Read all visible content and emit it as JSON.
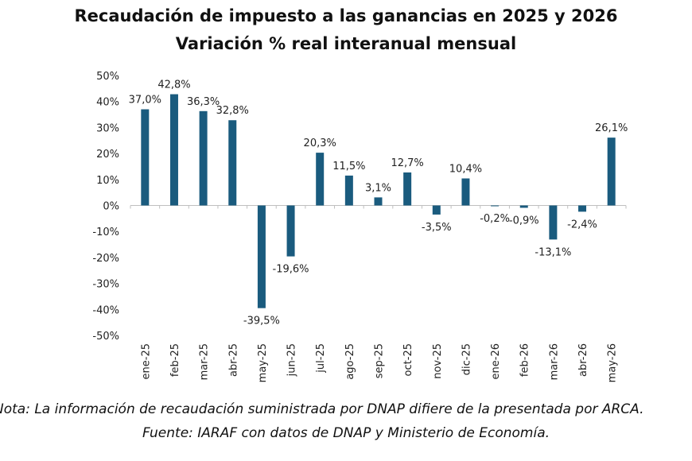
{
  "chart_data": {
    "type": "bar",
    "title": "Recaudación de impuesto a las ganancias en 2025 y 2026",
    "subtitle": "Variación % real interanual mensual",
    "categories": [
      "ene-25",
      "feb-25",
      "mar-25",
      "abr-25",
      "may-25",
      "jun-25",
      "jul-25",
      "ago-25",
      "sep-25",
      "oct-25",
      "nov-25",
      "dic-25",
      "ene-26",
      "feb-26",
      "mar-26",
      "abr-26",
      "may-26"
    ],
    "values": [
      37.0,
      42.8,
      36.3,
      32.8,
      -39.5,
      -19.6,
      20.3,
      11.5,
      3.1,
      12.7,
      -3.5,
      10.4,
      -0.2,
      -0.9,
      -13.1,
      -2.4,
      26.1
    ],
    "value_labels": [
      "37,0%",
      "42,8%",
      "36,3%",
      "32,8%",
      "-39,5%",
      "-19,6%",
      "20,3%",
      "11,5%",
      "3,1%",
      "12,7%",
      "-3,5%",
      "10,4%",
      "-0,2%",
      "-0,9%",
      "-13,1%",
      "-2,4%",
      "26,1%"
    ],
    "y_ticks": [
      50,
      40,
      30,
      20,
      10,
      0,
      -10,
      -20,
      -30,
      -40,
      -50
    ],
    "y_tick_labels": [
      "50%",
      "40%",
      "30%",
      "20%",
      "10%",
      "0%",
      "-10%",
      "-20%",
      "-30%",
      "-40%",
      "-50%"
    ],
    "ylim": [
      -50,
      50
    ],
    "grid": false,
    "legend": false,
    "bar_color": "#1a5b7e",
    "xlabel": "",
    "ylabel": ""
  },
  "footer": {
    "note": "Nota: La información de recaudación suministrada por DNAP difiere de la presentada por ARCA.",
    "source": "Fuente: IARAF con datos de DNAP y Ministerio de Economía."
  }
}
